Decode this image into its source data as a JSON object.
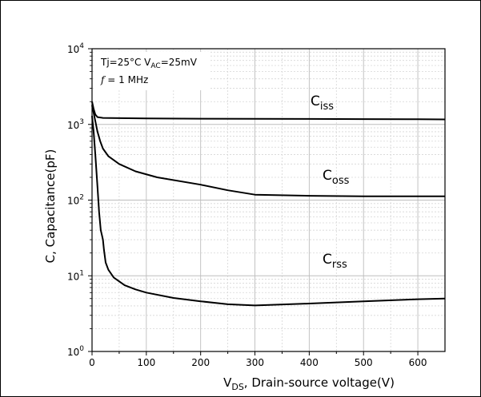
{
  "chart_data": {
    "type": "line",
    "x_scale": "linear",
    "y_scale": "log",
    "xlim": [
      0,
      650
    ],
    "ylim": [
      1,
      10000
    ],
    "grid": true,
    "xlabel": {
      "main": "V",
      "sub": "DS",
      "rest": ", Drain-source voltage(V)"
    },
    "ylabel": "C, Capacitance(pF)",
    "x_ticks": [
      {
        "v": 0,
        "label": "0"
      },
      {
        "v": 100,
        "label": "100"
      },
      {
        "v": 200,
        "label": "200"
      },
      {
        "v": 300,
        "label": "300"
      },
      {
        "v": 400,
        "label": "400"
      },
      {
        "v": 500,
        "label": "500"
      },
      {
        "v": 600,
        "label": "600"
      }
    ],
    "y_ticks": [
      {
        "v": 1,
        "base": "10",
        "exp": "0"
      },
      {
        "v": 10,
        "base": "10",
        "exp": "1"
      },
      {
        "v": 100,
        "base": "10",
        "exp": "2"
      },
      {
        "v": 1000,
        "base": "10",
        "exp": "3"
      },
      {
        "v": 10000,
        "base": "10",
        "exp": "4"
      }
    ],
    "annotations": {
      "line1": {
        "a": "Tj=25°C  V",
        "sub": "AC",
        "b": "=25mV"
      },
      "line2": {
        "italic": "f",
        "rest": " = 1 MHz"
      }
    },
    "series": [
      {
        "label_main": "C",
        "label_sub": "iss",
        "points": [
          [
            0,
            2000
          ],
          [
            3,
            1600
          ],
          [
            6,
            1350
          ],
          [
            10,
            1250
          ],
          [
            20,
            1220
          ],
          [
            50,
            1210
          ],
          [
            100,
            1200
          ],
          [
            200,
            1190
          ],
          [
            300,
            1185
          ],
          [
            400,
            1180
          ],
          [
            500,
            1175
          ],
          [
            600,
            1170
          ],
          [
            650,
            1165
          ]
        ]
      },
      {
        "label_main": "C",
        "label_sub": "oss",
        "points": [
          [
            0,
            1800
          ],
          [
            5,
            1200
          ],
          [
            10,
            800
          ],
          [
            15,
            600
          ],
          [
            20,
            480
          ],
          [
            30,
            380
          ],
          [
            50,
            300
          ],
          [
            80,
            240
          ],
          [
            120,
            200
          ],
          [
            200,
            160
          ],
          [
            250,
            135
          ],
          [
            300,
            118
          ],
          [
            400,
            114
          ],
          [
            500,
            112
          ],
          [
            600,
            112
          ],
          [
            650,
            112
          ]
        ]
      },
      {
        "label_main": "C",
        "label_sub": "rss",
        "points": [
          [
            0,
            1300
          ],
          [
            3,
            800
          ],
          [
            6,
            400
          ],
          [
            10,
            150
          ],
          [
            13,
            70
          ],
          [
            16,
            40
          ],
          [
            18,
            35
          ],
          [
            20,
            30
          ],
          [
            22,
            22
          ],
          [
            25,
            15
          ],
          [
            30,
            12
          ],
          [
            40,
            9.5
          ],
          [
            60,
            7.5
          ],
          [
            80,
            6.6
          ],
          [
            100,
            6.0
          ],
          [
            150,
            5.1
          ],
          [
            200,
            4.6
          ],
          [
            250,
            4.2
          ],
          [
            300,
            4.05
          ],
          [
            400,
            4.3
          ],
          [
            500,
            4.6
          ],
          [
            600,
            4.9
          ],
          [
            650,
            5.0
          ]
        ]
      }
    ]
  }
}
